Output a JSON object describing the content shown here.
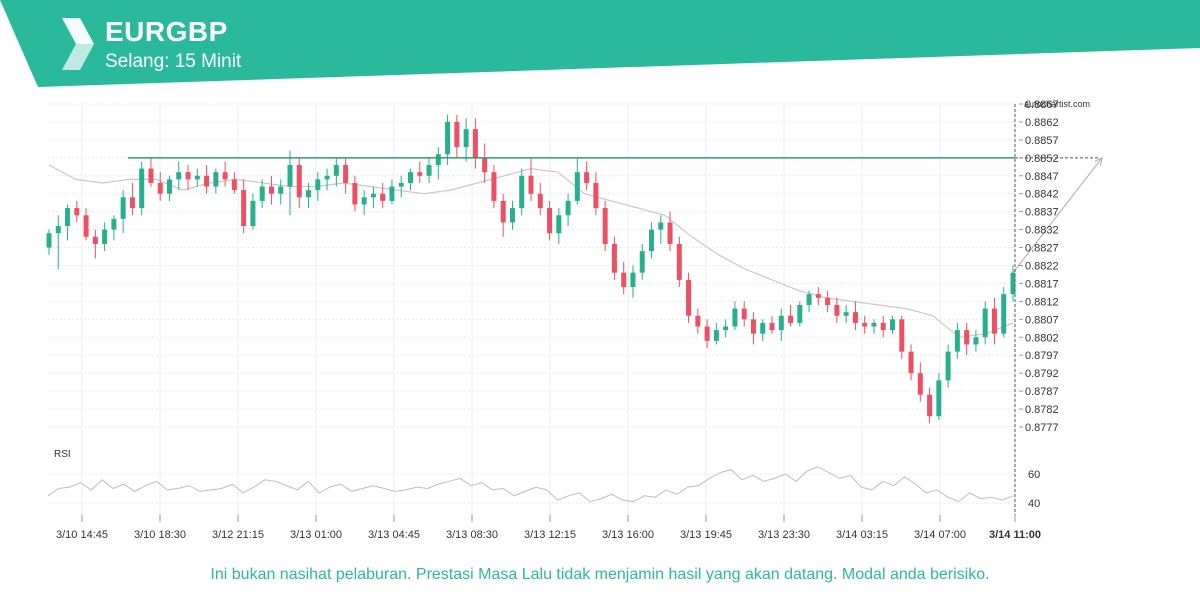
{
  "header": {
    "symbol": "EURGBP",
    "interval": "Selang: 15 Minit",
    "brand_color": "#2bb99c"
  },
  "brand_label": "autochartist.com",
  "disclaimer": "Ini bukan nasihat pelaburan. Prestasi Masa Lalu tidak menjamin hasil yang akan datang. Modal anda berisiko.",
  "chart_data": {
    "type": "candlestick",
    "price_axis": {
      "range": [
        0.8774,
        0.8869
      ],
      "ticks": [
        "0.8867",
        "0.8862",
        "0.8857",
        "0.8852",
        "0.8847",
        "0.8842",
        "0.8837",
        "0.8832",
        "0.8827",
        "0.8822",
        "0.8817",
        "0.8812",
        "0.8807",
        "0.8802",
        "0.8797",
        "0.8792",
        "0.8787",
        "0.8782",
        "0.8777"
      ],
      "position": "right"
    },
    "time_axis": {
      "ticks": [
        "3/10 14:45",
        "3/10 18:30",
        "3/12 21:15",
        "3/13 01:00",
        "3/13 04:45",
        "3/13 08:30",
        "3/13 12:15",
        "3/13 16:00",
        "3/13 19:45",
        "3/13 23:30",
        "3/14 03:15",
        "3/14 07:00",
        "3/14 11:00"
      ],
      "highlighted": "3/14 11:00"
    },
    "resistance_level": 0.8852,
    "forecast_target": 0.8852,
    "moving_average": [
      0.885,
      0.8846,
      0.8845,
      0.8846,
      0.8846,
      0.8843,
      0.8845,
      0.8846,
      0.8845,
      0.8844,
      0.8844,
      0.8845,
      0.8844,
      0.8843,
      0.8842,
      0.8843,
      0.8845,
      0.8847,
      0.8849,
      0.8848,
      0.8842,
      0.884,
      0.8838,
      0.8836,
      0.883,
      0.8825,
      0.8821,
      0.8818,
      0.8815,
      0.8813,
      0.8812,
      0.8811,
      0.881,
      0.8808,
      0.8802,
      0.8803,
      0.8806
    ],
    "rsi": {
      "label": "RSI",
      "ticks": [
        "60",
        "40"
      ],
      "range": [
        30,
        70
      ],
      "values": [
        45,
        50,
        51,
        54,
        49,
        56,
        50,
        53,
        48,
        52,
        55,
        49,
        50,
        52,
        48,
        49,
        50,
        53,
        47,
        51,
        56,
        55,
        52,
        49,
        55,
        47,
        51,
        53,
        48,
        50,
        52,
        50,
        48,
        49,
        51,
        50,
        53,
        55,
        57,
        52,
        54,
        49,
        50,
        45,
        48,
        51,
        49,
        42,
        45,
        47,
        41,
        43,
        46,
        42,
        41,
        45,
        44,
        49,
        46,
        51,
        52,
        57,
        61,
        63,
        56,
        59,
        55,
        57,
        60,
        55,
        62,
        65,
        61,
        57,
        59,
        51,
        49,
        55,
        52,
        58,
        53,
        47,
        49,
        44,
        41,
        47,
        43,
        44,
        42,
        45
      ]
    },
    "candles": [
      [
        0.8827,
        0.8832,
        0.8825,
        0.8831
      ],
      [
        0.8831,
        0.8836,
        0.8821,
        0.8833
      ],
      [
        0.8833,
        0.8839,
        0.8829,
        0.8838
      ],
      [
        0.8838,
        0.884,
        0.8834,
        0.8836
      ],
      [
        0.8836,
        0.8838,
        0.8829,
        0.883
      ],
      [
        0.883,
        0.8832,
        0.8824,
        0.8828
      ],
      [
        0.8828,
        0.8834,
        0.8826,
        0.8832
      ],
      [
        0.8832,
        0.8836,
        0.8829,
        0.8835
      ],
      [
        0.8835,
        0.8843,
        0.8831,
        0.8841
      ],
      [
        0.8841,
        0.8845,
        0.8836,
        0.8838
      ],
      [
        0.8838,
        0.8851,
        0.8836,
        0.8849
      ],
      [
        0.8849,
        0.8852,
        0.8844,
        0.8845
      ],
      [
        0.8845,
        0.8848,
        0.884,
        0.8842
      ],
      [
        0.8842,
        0.8847,
        0.884,
        0.8846
      ],
      [
        0.8846,
        0.8851,
        0.8843,
        0.8848
      ],
      [
        0.8848,
        0.885,
        0.8843,
        0.8846
      ],
      [
        0.8846,
        0.8849,
        0.8844,
        0.8847
      ],
      [
        0.8847,
        0.885,
        0.8842,
        0.8844
      ],
      [
        0.8844,
        0.8849,
        0.8842,
        0.8848
      ],
      [
        0.8848,
        0.8851,
        0.8844,
        0.8846
      ],
      [
        0.8846,
        0.8848,
        0.8842,
        0.8843
      ],
      [
        0.8843,
        0.8846,
        0.8831,
        0.8833
      ],
      [
        0.8833,
        0.8842,
        0.8832,
        0.884
      ],
      [
        0.884,
        0.8846,
        0.8838,
        0.8844
      ],
      [
        0.8844,
        0.8847,
        0.8839,
        0.8842
      ],
      [
        0.8842,
        0.8846,
        0.8839,
        0.8844
      ],
      [
        0.8844,
        0.8854,
        0.8836,
        0.885
      ],
      [
        0.885,
        0.8852,
        0.8838,
        0.8841
      ],
      [
        0.8841,
        0.8845,
        0.8838,
        0.8843
      ],
      [
        0.8843,
        0.8848,
        0.884,
        0.8846
      ],
      [
        0.8846,
        0.8849,
        0.8843,
        0.8847
      ],
      [
        0.8847,
        0.8852,
        0.8844,
        0.885
      ],
      [
        0.885,
        0.8852,
        0.8842,
        0.8845
      ],
      [
        0.8845,
        0.8847,
        0.8837,
        0.8839
      ],
      [
        0.8839,
        0.8843,
        0.8836,
        0.8841
      ],
      [
        0.8841,
        0.8844,
        0.8838,
        0.8842
      ],
      [
        0.8842,
        0.8845,
        0.8838,
        0.884
      ],
      [
        0.884,
        0.8846,
        0.8839,
        0.8844
      ],
      [
        0.8844,
        0.8847,
        0.8841,
        0.8845
      ],
      [
        0.8845,
        0.8849,
        0.8843,
        0.8848
      ],
      [
        0.8848,
        0.8851,
        0.8845,
        0.8847
      ],
      [
        0.8847,
        0.8852,
        0.8845,
        0.885
      ],
      [
        0.885,
        0.8855,
        0.8846,
        0.8853
      ],
      [
        0.8853,
        0.8864,
        0.885,
        0.8862
      ],
      [
        0.8862,
        0.8864,
        0.8852,
        0.8855
      ],
      [
        0.8855,
        0.8863,
        0.8851,
        0.886
      ],
      [
        0.886,
        0.8863,
        0.8849,
        0.8852
      ],
      [
        0.8852,
        0.8856,
        0.8845,
        0.8848
      ],
      [
        0.8848,
        0.885,
        0.8838,
        0.884
      ],
      [
        0.884,
        0.8842,
        0.883,
        0.8834
      ],
      [
        0.8834,
        0.884,
        0.8832,
        0.8838
      ],
      [
        0.8838,
        0.8849,
        0.8836,
        0.8847
      ],
      [
        0.8847,
        0.8852,
        0.884,
        0.8842
      ],
      [
        0.8842,
        0.8845,
        0.8836,
        0.8838
      ],
      [
        0.8838,
        0.884,
        0.8829,
        0.8831
      ],
      [
        0.8831,
        0.8838,
        0.8828,
        0.8836
      ],
      [
        0.8836,
        0.8842,
        0.8833,
        0.884
      ],
      [
        0.884,
        0.8852,
        0.8839,
        0.8848
      ],
      [
        0.8848,
        0.8851,
        0.8843,
        0.8845
      ],
      [
        0.8845,
        0.8848,
        0.8836,
        0.8838
      ],
      [
        0.8838,
        0.884,
        0.8826,
        0.8828
      ],
      [
        0.8828,
        0.883,
        0.8818,
        0.882
      ],
      [
        0.882,
        0.8823,
        0.8814,
        0.8816
      ],
      [
        0.8816,
        0.8822,
        0.8813,
        0.882
      ],
      [
        0.882,
        0.8828,
        0.8818,
        0.8826
      ],
      [
        0.8826,
        0.8834,
        0.8824,
        0.8832
      ],
      [
        0.8832,
        0.8836,
        0.8828,
        0.8834
      ],
      [
        0.8834,
        0.8837,
        0.8826,
        0.8828
      ],
      [
        0.8828,
        0.883,
        0.8816,
        0.8818
      ],
      [
        0.8818,
        0.882,
        0.8806,
        0.8808
      ],
      [
        0.8808,
        0.881,
        0.8803,
        0.8805
      ],
      [
        0.8805,
        0.8807,
        0.8799,
        0.8801
      ],
      [
        0.8801,
        0.8806,
        0.88,
        0.8804
      ],
      [
        0.8804,
        0.8807,
        0.8802,
        0.8805
      ],
      [
        0.8805,
        0.8812,
        0.8804,
        0.881
      ],
      [
        0.881,
        0.8812,
        0.8805,
        0.8807
      ],
      [
        0.8807,
        0.8809,
        0.88,
        0.8803
      ],
      [
        0.8803,
        0.8807,
        0.8801,
        0.8806
      ],
      [
        0.8806,
        0.8808,
        0.8803,
        0.8804
      ],
      [
        0.8804,
        0.881,
        0.8801,
        0.8808
      ],
      [
        0.8808,
        0.8811,
        0.8805,
        0.8806
      ],
      [
        0.8806,
        0.8812,
        0.8805,
        0.8811
      ],
      [
        0.8811,
        0.8815,
        0.8809,
        0.8814
      ],
      [
        0.8814,
        0.8816,
        0.8811,
        0.8813
      ],
      [
        0.8813,
        0.8815,
        0.8809,
        0.8811
      ],
      [
        0.8811,
        0.8813,
        0.8806,
        0.8808
      ],
      [
        0.8808,
        0.8811,
        0.8806,
        0.8809
      ],
      [
        0.8809,
        0.8812,
        0.8804,
        0.8806
      ],
      [
        0.8806,
        0.8808,
        0.8803,
        0.8805
      ],
      [
        0.8805,
        0.8807,
        0.8803,
        0.8806
      ],
      [
        0.8806,
        0.8808,
        0.8802,
        0.8804
      ],
      [
        0.8804,
        0.8808,
        0.8803,
        0.8807
      ],
      [
        0.8807,
        0.8808,
        0.8796,
        0.8798
      ],
      [
        0.8798,
        0.88,
        0.879,
        0.8792
      ],
      [
        0.8792,
        0.8795,
        0.8784,
        0.8786
      ],
      [
        0.8786,
        0.8788,
        0.8778,
        0.878
      ],
      [
        0.878,
        0.8792,
        0.8779,
        0.879
      ],
      [
        0.879,
        0.88,
        0.8788,
        0.8798
      ],
      [
        0.8798,
        0.8806,
        0.8796,
        0.8804
      ],
      [
        0.8804,
        0.8806,
        0.8797,
        0.88
      ],
      [
        0.88,
        0.8804,
        0.8798,
        0.8802
      ],
      [
        0.8802,
        0.8812,
        0.88,
        0.881
      ],
      [
        0.881,
        0.8813,
        0.88,
        0.8803
      ],
      [
        0.8803,
        0.8816,
        0.8802,
        0.8814
      ],
      [
        0.8814,
        0.8822,
        0.8812,
        0.882
      ]
    ]
  }
}
